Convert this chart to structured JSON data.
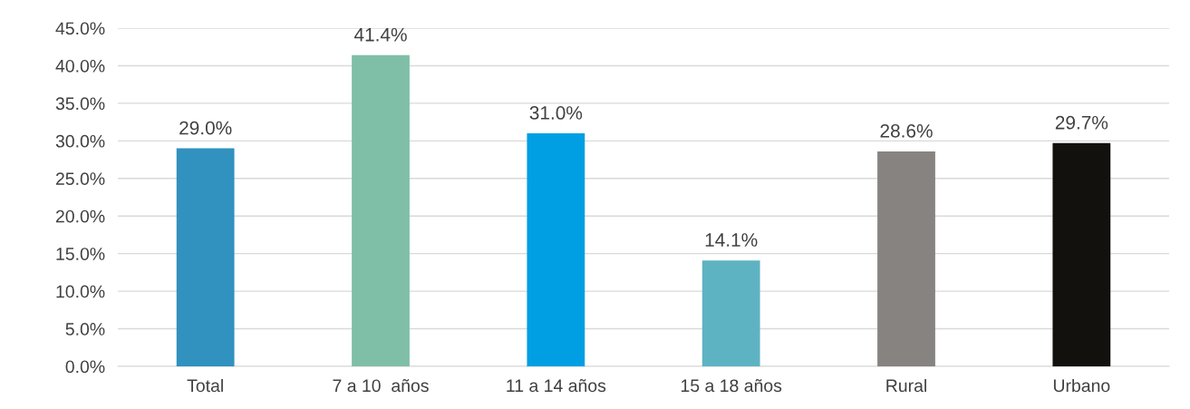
{
  "chart_data": {
    "type": "bar",
    "categories": [
      "Total",
      "7 a 10  años",
      "11 a 14 años",
      "15 a 18 años",
      "Rural",
      "Urbano"
    ],
    "values": [
      29.0,
      41.4,
      31.0,
      14.1,
      28.6,
      29.7
    ],
    "colors": [
      "#3191bf",
      "#7fbfa8",
      "#009fe3",
      "#5eb3c2",
      "#878381",
      "#12110d"
    ],
    "value_labels": [
      "29.0%",
      "41.4%",
      "31.0%",
      "14.1%",
      "28.6%",
      "29.7%"
    ],
    "ylim": [
      0,
      45
    ],
    "yticks": [
      {
        "value": 0,
        "label": "0.0%"
      },
      {
        "value": 5,
        "label": "5.0%"
      },
      {
        "value": 10,
        "label": "10.0%"
      },
      {
        "value": 15,
        "label": "15.0%"
      },
      {
        "value": 20,
        "label": "20.0%"
      },
      {
        "value": 25,
        "label": "25.0%"
      },
      {
        "value": 30,
        "label": "30.0%"
      },
      {
        "value": 35,
        "label": "35.0%"
      },
      {
        "value": 40,
        "label": "40.0%"
      },
      {
        "value": 45,
        "label": "45.0%"
      }
    ],
    "grid": "y",
    "legend": false
  }
}
